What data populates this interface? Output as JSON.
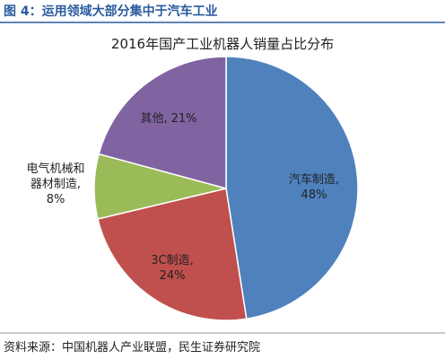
{
  "header": {
    "title": "图 4：运用领域大部分集中于汽车工业"
  },
  "chart_data": {
    "type": "pie",
    "title": "2016年国产工业机器人销量占比分布",
    "categories": [
      "汽车制造,",
      "3C制造,",
      "电气机械和器材制造,",
      "其他,"
    ],
    "values": [
      48,
      24,
      8,
      21
    ],
    "value_labels": [
      "48%",
      "24%",
      "8%",
      "21%"
    ],
    "colors": [
      "#4f81bd",
      "#c0504d",
      "#9bbb59",
      "#8064a2"
    ]
  },
  "footer": {
    "source": "资料来源：中国机器人产业联盟，民生证券研究院"
  }
}
